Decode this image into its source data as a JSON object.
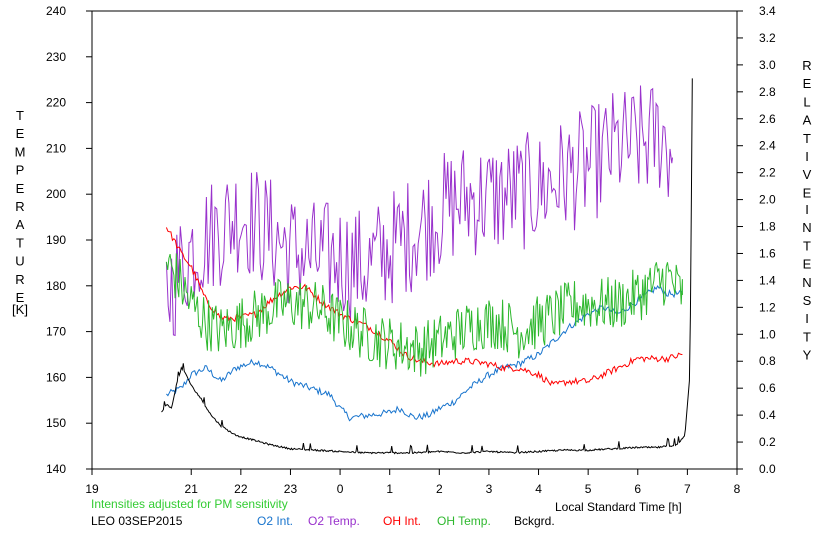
{
  "chart_data": {
    "type": "line",
    "x_ticks": [
      "19",
      "21",
      "22",
      "23",
      "0",
      "1",
      "2",
      "3",
      "4",
      "5",
      "6",
      "7",
      "8"
    ],
    "x_tick_positions": [
      19,
      21,
      22,
      23,
      24,
      25,
      26,
      27,
      28,
      29,
      30,
      31,
      32
    ],
    "xlim": [
      19,
      32
    ],
    "ylim_left": [
      140,
      240
    ],
    "ylim_right": [
      0.0,
      3.4
    ],
    "left_ticks": [
      "240",
      "230",
      "220",
      "210",
      "200",
      "190",
      "180",
      "170",
      "160",
      "150",
      "140"
    ],
    "right_ticks": [
      "3.4",
      "3.2",
      "3.0",
      "2.8",
      "2.6",
      "2.4",
      "2.2",
      "2.0",
      "1.8",
      "1.6",
      "1.4",
      "1.2",
      "1.0",
      "0.8",
      "0.6",
      "0.4",
      "0.2",
      "0.0"
    ],
    "left_axis_letters": [
      "T",
      "E",
      "M",
      "P",
      "E",
      "R",
      "A",
      "T",
      "U",
      "R",
      "E"
    ],
    "left_axis_unit": "[K]",
    "right_axis_letters_1": [
      "R",
      "E",
      "L",
      "A",
      "T",
      "I",
      "V",
      "E"
    ],
    "right_axis_letters_2": [
      "I",
      "N",
      "T",
      "E",
      "N",
      "S",
      "I",
      "T",
      "Y"
    ],
    "xlabel": "Local Standard Time [h]",
    "note": "Intensities adjusted for PM sensitivity",
    "station": "LEO 03SEP2015",
    "grid": false,
    "series": [
      {
        "name": "O2 Int.",
        "axis": "right",
        "color": "#1874cd",
        "x": [
          20.5,
          20.8,
          21.0,
          21.3,
          21.6,
          21.9,
          22.3,
          22.6,
          22.8,
          23.0,
          23.4,
          23.8,
          24.0,
          24.2,
          24.6,
          25.0,
          25.2,
          25.5,
          25.8,
          26.0,
          26.3,
          26.6,
          27.0,
          27.3,
          27.6,
          28.0,
          28.3,
          28.6,
          29.0,
          29.3,
          29.6,
          30.0,
          30.4,
          30.6,
          30.9
        ],
        "y": [
          0.55,
          0.6,
          0.7,
          0.75,
          0.65,
          0.75,
          0.8,
          0.75,
          0.7,
          0.65,
          0.6,
          0.55,
          0.45,
          0.38,
          0.4,
          0.42,
          0.45,
          0.38,
          0.4,
          0.45,
          0.5,
          0.6,
          0.7,
          0.75,
          0.78,
          0.85,
          0.95,
          1.05,
          1.15,
          1.2,
          1.15,
          1.25,
          1.35,
          1.3,
          1.3
        ]
      },
      {
        "name": "O2 Temp.",
        "axis": "left",
        "color": "#9932cc",
        "x": [
          20.5,
          21.0,
          21.5,
          22.0,
          22.5,
          23.0,
          23.5,
          24.0,
          24.5,
          25.0,
          25.5,
          26.0,
          26.5,
          27.0,
          27.5,
          28.0,
          28.5,
          29.0,
          29.5,
          30.0,
          30.5,
          30.7
        ],
        "y": [
          178,
          188,
          192,
          196,
          192,
          188,
          186,
          186,
          184,
          188,
          192,
          196,
          199,
          199,
          200,
          201,
          204,
          206,
          210,
          211,
          213,
          208
        ]
      },
      {
        "name": "OH Int.",
        "axis": "right",
        "color": "#ff0000",
        "x": [
          20.5,
          20.8,
          21.0,
          21.3,
          21.6,
          21.9,
          22.3,
          22.6,
          23.0,
          23.3,
          23.6,
          24.0,
          24.3,
          24.6,
          25.0,
          25.3,
          25.6,
          26.0,
          26.3,
          26.6,
          27.0,
          27.3,
          27.6,
          28.0,
          28.3,
          28.6,
          29.0,
          29.3,
          29.6,
          30.0,
          30.3,
          30.6,
          30.9
        ],
        "y": [
          1.8,
          1.6,
          1.5,
          1.25,
          1.12,
          1.12,
          1.15,
          1.25,
          1.35,
          1.35,
          1.25,
          1.15,
          1.1,
          1.05,
          0.95,
          0.85,
          0.8,
          0.78,
          0.8,
          0.8,
          0.78,
          0.75,
          0.75,
          0.7,
          0.62,
          0.65,
          0.65,
          0.7,
          0.75,
          0.82,
          0.82,
          0.82,
          0.85
        ]
      },
      {
        "name": "OH Temp.",
        "axis": "left",
        "color": "#2eb82e",
        "x": [
          20.5,
          20.7,
          21.0,
          21.3,
          21.6,
          22.0,
          22.4,
          22.8,
          23.2,
          23.6,
          24.0,
          24.4,
          24.8,
          25.2,
          25.6,
          26.0,
          26.4,
          26.8,
          27.2,
          27.6,
          28.0,
          28.4,
          28.8,
          29.2,
          29.6,
          30.0,
          30.3,
          30.6,
          30.9
        ],
        "y": [
          185,
          182,
          176,
          172,
          170,
          172,
          174,
          176,
          176,
          175,
          172,
          170,
          168,
          167,
          166,
          168,
          170,
          172,
          172,
          170,
          172,
          174,
          176,
          176,
          176,
          178,
          180,
          182,
          178
        ]
      },
      {
        "name": "Bckgrd.",
        "axis": "right",
        "color": "#000000",
        "x": [
          20.4,
          20.5,
          20.6,
          20.7,
          20.8,
          20.9,
          21.0,
          21.2,
          21.4,
          21.6,
          21.9,
          22.2,
          22.6,
          23.0,
          23.5,
          24.0,
          24.5,
          25.0,
          25.5,
          26.0,
          26.5,
          27.0,
          27.5,
          28.0,
          28.5,
          29.0,
          29.5,
          30.0,
          30.4,
          30.8,
          30.95,
          31.05,
          31.1
        ],
        "y": [
          0.42,
          0.48,
          0.45,
          0.62,
          0.75,
          0.7,
          0.62,
          0.52,
          0.4,
          0.32,
          0.25,
          0.22,
          0.18,
          0.15,
          0.14,
          0.13,
          0.12,
          0.12,
          0.12,
          0.13,
          0.12,
          0.13,
          0.12,
          0.13,
          0.14,
          0.14,
          0.15,
          0.16,
          0.16,
          0.18,
          0.25,
          0.7,
          2.9
        ]
      }
    ]
  }
}
